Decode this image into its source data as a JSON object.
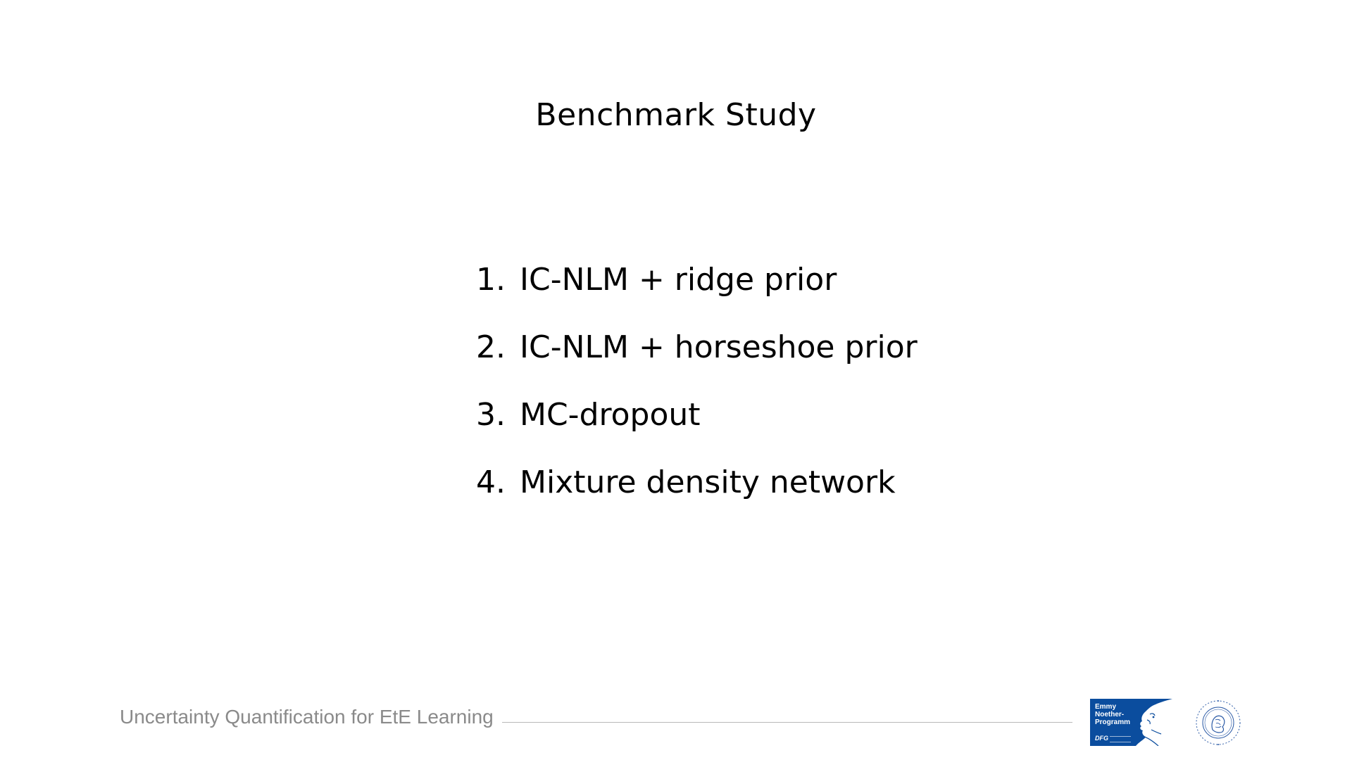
{
  "slide": {
    "title": "Benchmark Study",
    "items": [
      {
        "number": "1.",
        "text": "IC-NLM + ridge prior"
      },
      {
        "number": "2.",
        "text": "IC-NLM + horseshoe prior"
      },
      {
        "number": "3.",
        "text": "MC-dropout"
      },
      {
        "number": "4.",
        "text": "Mixture density network"
      }
    ]
  },
  "footer": {
    "text": "Uncertainty Quantification for EtE Learning",
    "logos": {
      "emmy_noether": {
        "text": "Emmy\nNoether-\nProgramm",
        "mark": "DFG",
        "color": "#0b4d9e",
        "icon": "emmy-noether-portrait-icon"
      },
      "humboldt_seal": {
        "icon": "humboldt-university-seal-icon",
        "color": "#2b5aa6"
      }
    }
  }
}
